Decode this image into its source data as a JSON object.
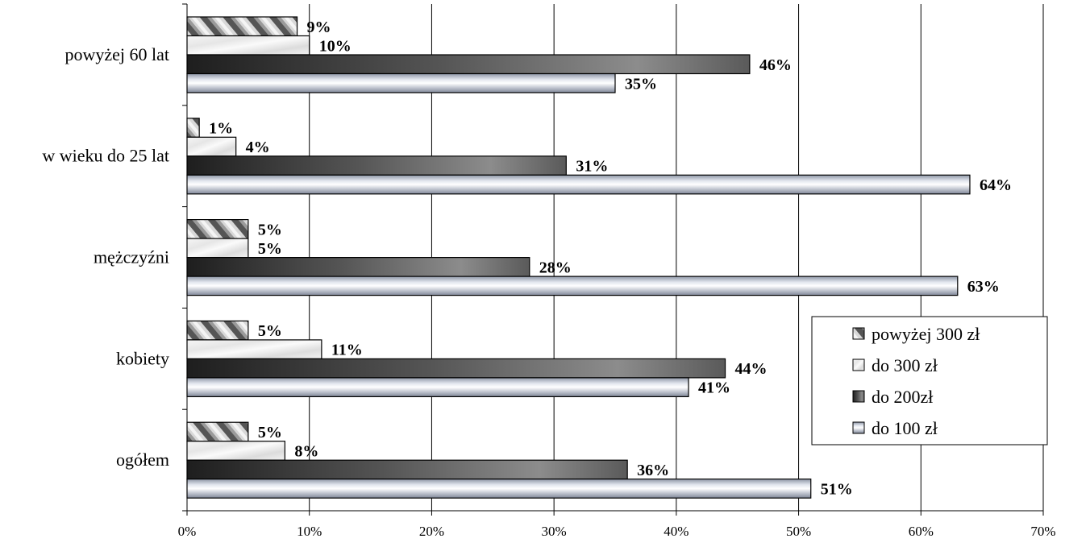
{
  "chart_data": {
    "type": "bar",
    "orientation": "horizontal",
    "categories": [
      "powyżej 60 lat",
      "w wieku do 25 lat",
      "mężczyźni",
      "kobiety",
      "ogółem"
    ],
    "series": [
      {
        "name": "powyżej 300 zł",
        "values": [
          9,
          1,
          5,
          5,
          5
        ],
        "labels": [
          "9%",
          "1%",
          "5%",
          "5%",
          "5%"
        ],
        "pattern": "diagonal-stripes"
      },
      {
        "name": "do 300 zł",
        "values": [
          10,
          4,
          5,
          11,
          8
        ],
        "labels": [
          "10%",
          "4%",
          "5%",
          "11%",
          "8%"
        ],
        "pattern": "light-marble"
      },
      {
        "name": "do 200zł",
        "values": [
          46,
          31,
          28,
          44,
          36
        ],
        "labels": [
          "46%",
          "31%",
          "28%",
          "44%",
          "36%"
        ],
        "pattern": "dark-gradient"
      },
      {
        "name": "do 100 zł",
        "values": [
          35,
          64,
          63,
          41,
          51
        ],
        "labels": [
          "35%",
          "64%",
          "63%",
          "41%",
          "51%"
        ],
        "pattern": "light-cylinder"
      }
    ],
    "x_ticks": [
      "0%",
      "10%",
      "20%",
      "30%",
      "40%",
      "50%",
      "60%",
      "70%"
    ],
    "xlim": [
      0,
      70
    ],
    "x_unit": "%",
    "grid": "vertical",
    "legend_position": "right",
    "legend_order": [
      "powyżej 300 zł",
      "do 300 zł",
      "do 200zł",
      "do 100 zł"
    ]
  }
}
